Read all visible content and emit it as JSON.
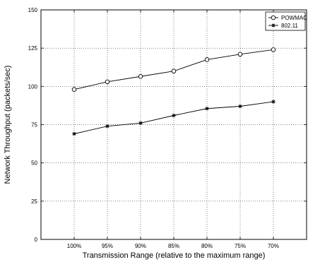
{
  "chart_data": {
    "type": "line",
    "title": "",
    "xlabel": "Transmission Range (relative to the maximum range)",
    "ylabel": "Network Throughput (packets/sec)",
    "categories": [
      "100%",
      "95%",
      "90%",
      "85%",
      "80%",
      "75%",
      "70%"
    ],
    "ylim": [
      0,
      150
    ],
    "yticks": [
      0,
      25,
      50,
      75,
      100,
      125,
      150
    ],
    "grid": true,
    "grid_style": "dotted",
    "legend_position": "top-right",
    "series": [
      {
        "name": "POWMAC",
        "marker": "circle",
        "color": "#000000",
        "values": [
          98,
          103,
          106.5,
          110,
          117.5,
          121,
          124
        ]
      },
      {
        "name": "802.11",
        "marker": "star",
        "color": "#000000",
        "values": [
          69,
          74,
          76,
          81,
          85.5,
          87,
          90
        ]
      }
    ]
  }
}
